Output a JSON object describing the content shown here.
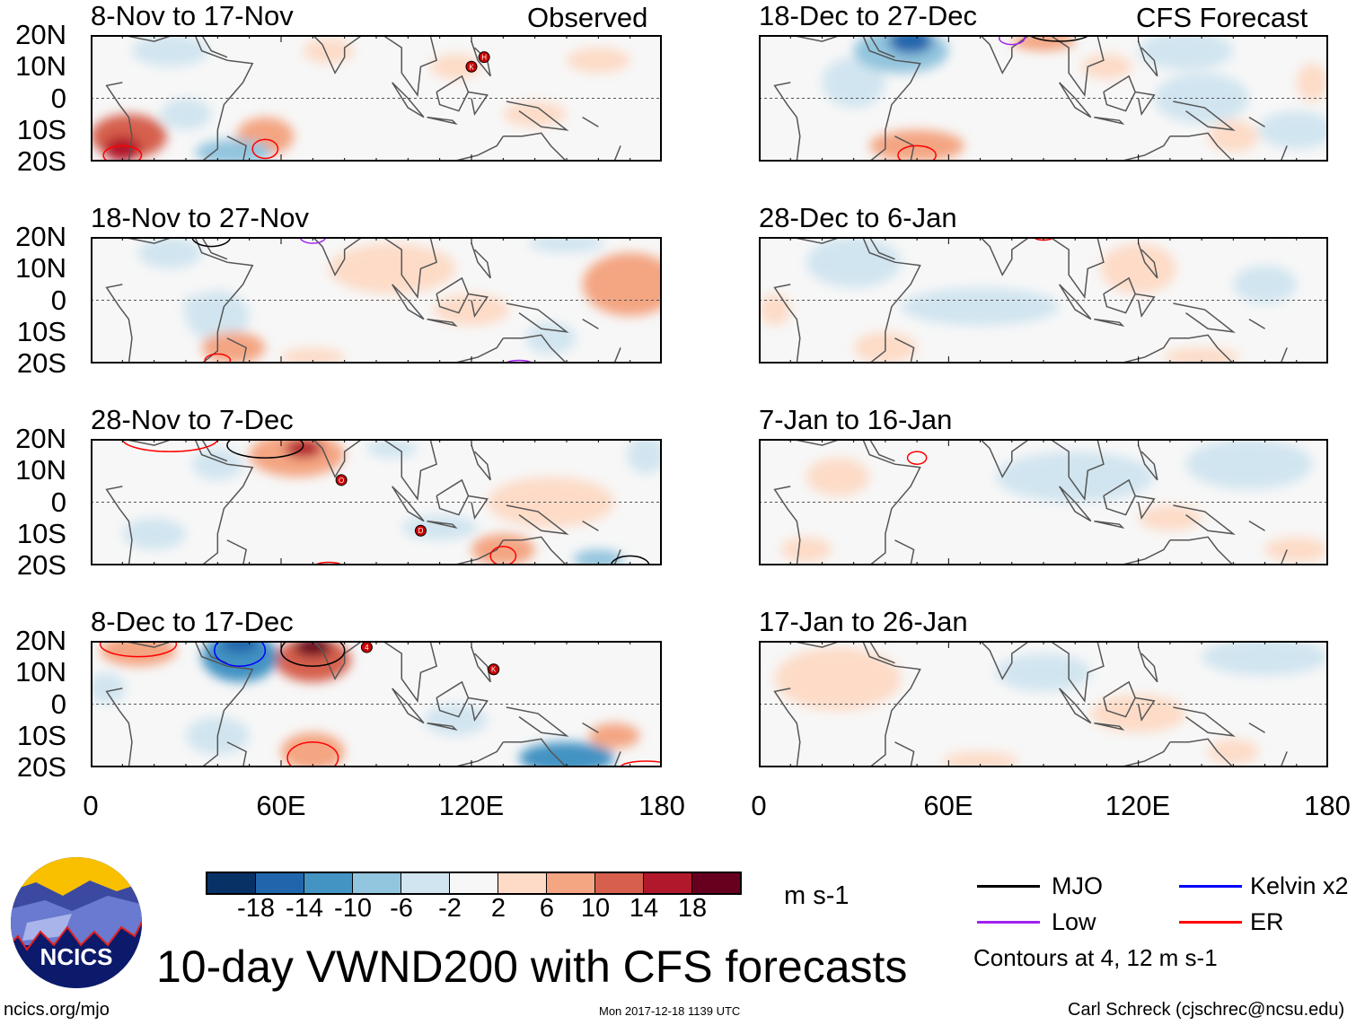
{
  "header": {
    "observed_label": "Observed",
    "forecast_label": "CFS Forecast"
  },
  "lat_labels": [
    "20N",
    "10N",
    "0",
    "10S",
    "20S"
  ],
  "lon_labels": [
    "0",
    "60E",
    "120E",
    "180"
  ],
  "chart_data": {
    "type": "heatmap",
    "variable": "VWND200 10-day mean anomaly",
    "lon_range": [
      0,
      180
    ],
    "lat_range": [
      -20,
      20
    ],
    "panels": [
      {
        "title": "8-Nov to 17-Nov",
        "column": "observed",
        "features": [
          [
            12,
            -12,
            12,
            7,
            10
          ],
          [
            10,
            -16,
            6,
            4,
            14
          ],
          [
            55,
            -12,
            9,
            6,
            8
          ],
          [
            45,
            -17,
            12,
            4,
            -8
          ],
          [
            25,
            15,
            12,
            5,
            -4
          ],
          [
            75,
            15,
            8,
            4,
            4
          ],
          [
            160,
            12,
            10,
            4,
            4
          ],
          [
            140,
            -5,
            10,
            4,
            4
          ],
          [
            115,
            10,
            8,
            4,
            4
          ],
          [
            30,
            -5,
            8,
            5,
            -4
          ]
        ],
        "contours": [
          [
            10,
            -18,
            6,
            3,
            "ER"
          ],
          [
            55,
            -16,
            4,
            3,
            "ER"
          ]
        ],
        "storms": [
          [
            120,
            10,
            "K"
          ],
          [
            124,
            13,
            "H"
          ]
        ]
      },
      {
        "title": "18-Nov to 27-Nov",
        "column": "observed",
        "features": [
          [
            95,
            10,
            20,
            8,
            4
          ],
          [
            170,
            5,
            15,
            10,
            6
          ],
          [
            150,
            18,
            12,
            3,
            -6
          ],
          [
            40,
            -5,
            10,
            8,
            -6
          ],
          [
            45,
            -15,
            10,
            5,
            6
          ],
          [
            35,
            -2,
            6,
            4,
            -4
          ],
          [
            70,
            -18,
            10,
            3,
            4
          ],
          [
            120,
            -3,
            12,
            5,
            4
          ],
          [
            25,
            15,
            10,
            5,
            -4
          ],
          [
            145,
            -12,
            8,
            5,
            -4
          ]
        ],
        "contours": [
          [
            38,
            20,
            6,
            3,
            "MJO"
          ],
          [
            70,
            20,
            4,
            2,
            "Low"
          ],
          [
            40,
            -19,
            4,
            2,
            "ER"
          ],
          [
            135,
            -20,
            4,
            1,
            "Low"
          ]
        ],
        "storms": []
      },
      {
        "title": "28-Nov to 7-Dec",
        "column": "observed",
        "features": [
          [
            65,
            15,
            15,
            7,
            8
          ],
          [
            67,
            17,
            6,
            3,
            14
          ],
          [
            40,
            12,
            8,
            5,
            -6
          ],
          [
            145,
            0,
            20,
            8,
            4
          ],
          [
            130,
            -15,
            10,
            5,
            6
          ],
          [
            160,
            -18,
            8,
            3,
            -8
          ],
          [
            20,
            -10,
            10,
            5,
            -4
          ],
          [
            110,
            -8,
            12,
            4,
            -4
          ],
          [
            95,
            17,
            8,
            3,
            -4
          ],
          [
            175,
            15,
            6,
            6,
            -4
          ]
        ],
        "contours": [
          [
            55,
            18,
            12,
            4,
            "MJO"
          ],
          [
            25,
            20,
            15,
            4,
            "ER"
          ],
          [
            130,
            -17,
            4,
            3,
            "ER"
          ],
          [
            170,
            -20,
            6,
            3,
            "MJO"
          ],
          [
            75,
            -20,
            4,
            1,
            "ER"
          ]
        ],
        "storms": [
          [
            79,
            7,
            "O"
          ],
          [
            104,
            -9,
            "D"
          ]
        ]
      },
      {
        "title": "8-Dec to 17-Dec",
        "column": "observed",
        "features": [
          [
            47,
            15,
            12,
            8,
            -14
          ],
          [
            47,
            19,
            6,
            3,
            -18
          ],
          [
            70,
            14,
            12,
            7,
            10
          ],
          [
            70,
            18,
            6,
            3,
            18
          ],
          [
            15,
            17,
            12,
            5,
            8
          ],
          [
            150,
            -17,
            15,
            5,
            -12
          ],
          [
            70,
            -15,
            10,
            6,
            8
          ],
          [
            40,
            -10,
            10,
            6,
            -6
          ],
          [
            165,
            -10,
            8,
            4,
            6
          ],
          [
            115,
            -5,
            10,
            5,
            -4
          ],
          [
            5,
            5,
            6,
            5,
            -4
          ]
        ],
        "contours": [
          [
            70,
            17,
            10,
            5,
            "MJO"
          ],
          [
            15,
            19,
            12,
            4,
            "ER"
          ],
          [
            70,
            -17,
            8,
            5,
            "ER"
          ],
          [
            175,
            -20,
            8,
            2,
            "ER"
          ],
          [
            47,
            17,
            8,
            5,
            "Kelvin x2"
          ]
        ],
        "storms": [
          [
            87,
            18,
            "4"
          ],
          [
            127,
            11,
            "K"
          ]
        ]
      },
      {
        "title": "18-Dec to 27-Dec",
        "column": "forecast",
        "features": [
          [
            45,
            15,
            15,
            7,
            -10
          ],
          [
            48,
            18,
            7,
            4,
            -18
          ],
          [
            30,
            5,
            10,
            8,
            -6
          ],
          [
            50,
            -15,
            15,
            5,
            8
          ],
          [
            135,
            15,
            15,
            6,
            -4
          ],
          [
            140,
            0,
            15,
            8,
            -6
          ],
          [
            170,
            -10,
            12,
            6,
            -4
          ],
          [
            90,
            18,
            10,
            3,
            6
          ],
          [
            110,
            10,
            8,
            4,
            4
          ],
          [
            175,
            5,
            5,
            6,
            4
          ],
          [
            150,
            -12,
            8,
            5,
            4
          ]
        ],
        "contours": [
          [
            50,
            -18,
            6,
            3,
            "ER"
          ],
          [
            95,
            21,
            10,
            3,
            "MJO"
          ],
          [
            80,
            19,
            4,
            2,
            "Low"
          ]
        ],
        "storms": []
      },
      {
        "title": "28-Dec to 6-Jan",
        "column": "forecast",
        "features": [
          [
            30,
            12,
            15,
            8,
            -4
          ],
          [
            70,
            -2,
            25,
            6,
            -4
          ],
          [
            120,
            10,
            12,
            8,
            4
          ],
          [
            160,
            5,
            10,
            6,
            -4
          ],
          [
            140,
            -18,
            12,
            3,
            4
          ],
          [
            40,
            -15,
            10,
            5,
            4
          ],
          [
            5,
            -3,
            5,
            5,
            4
          ]
        ],
        "contours": [
          [
            90,
            20,
            3,
            1,
            "ER"
          ]
        ],
        "storms": []
      },
      {
        "title": "7-Jan to 16-Jan",
        "column": "forecast",
        "features": [
          [
            100,
            8,
            25,
            8,
            -4
          ],
          [
            155,
            12,
            20,
            8,
            -4
          ],
          [
            25,
            8,
            10,
            6,
            4
          ],
          [
            130,
            -5,
            10,
            4,
            4
          ],
          [
            170,
            -15,
            10,
            4,
            4
          ],
          [
            15,
            -15,
            8,
            4,
            4
          ]
        ],
        "contours": [
          [
            50,
            14,
            3,
            2,
            "ER"
          ]
        ],
        "storms": []
      },
      {
        "title": "17-Jan to 26-Jan",
        "column": "forecast",
        "features": [
          [
            25,
            8,
            20,
            10,
            4
          ],
          [
            90,
            10,
            15,
            6,
            -4
          ],
          [
            160,
            15,
            20,
            6,
            -6
          ],
          [
            120,
            -3,
            15,
            6,
            4
          ],
          [
            70,
            -18,
            12,
            3,
            4
          ],
          [
            150,
            -15,
            8,
            4,
            4
          ]
        ],
        "contours": [],
        "storms": []
      }
    ],
    "colorbar": {
      "ticks": [
        "-18",
        "-14",
        "-10",
        "-6",
        "-2",
        "2",
        "6",
        "10",
        "14",
        "18"
      ],
      "colors": [
        "#083266",
        "#2166ac",
        "#4393c3",
        "#92c5de",
        "#d1e5f0",
        "#f7f7f7",
        "#fddbc7",
        "#f4a582",
        "#d6604d",
        "#b2182b",
        "#67001f"
      ],
      "units": "m s-1"
    },
    "contour_legend": [
      {
        "label": "MJO",
        "color": "#000000"
      },
      {
        "label": "Kelvin x2",
        "color": "#0000ff"
      },
      {
        "label": "Low",
        "color": "#a020f0"
      },
      {
        "label": "ER",
        "color": "#ff0000"
      }
    ],
    "contour_note": "Contours at 4, 12 m s-1"
  },
  "footer": {
    "title": "10-day VWND200 with CFS forecasts",
    "left": "ncics.org/mjo",
    "center": "Mon 2017-12-18 1139 UTC",
    "right": "Carl Schreck (cjschrec@ncsu.edu)",
    "logo_text": "NCICS"
  }
}
